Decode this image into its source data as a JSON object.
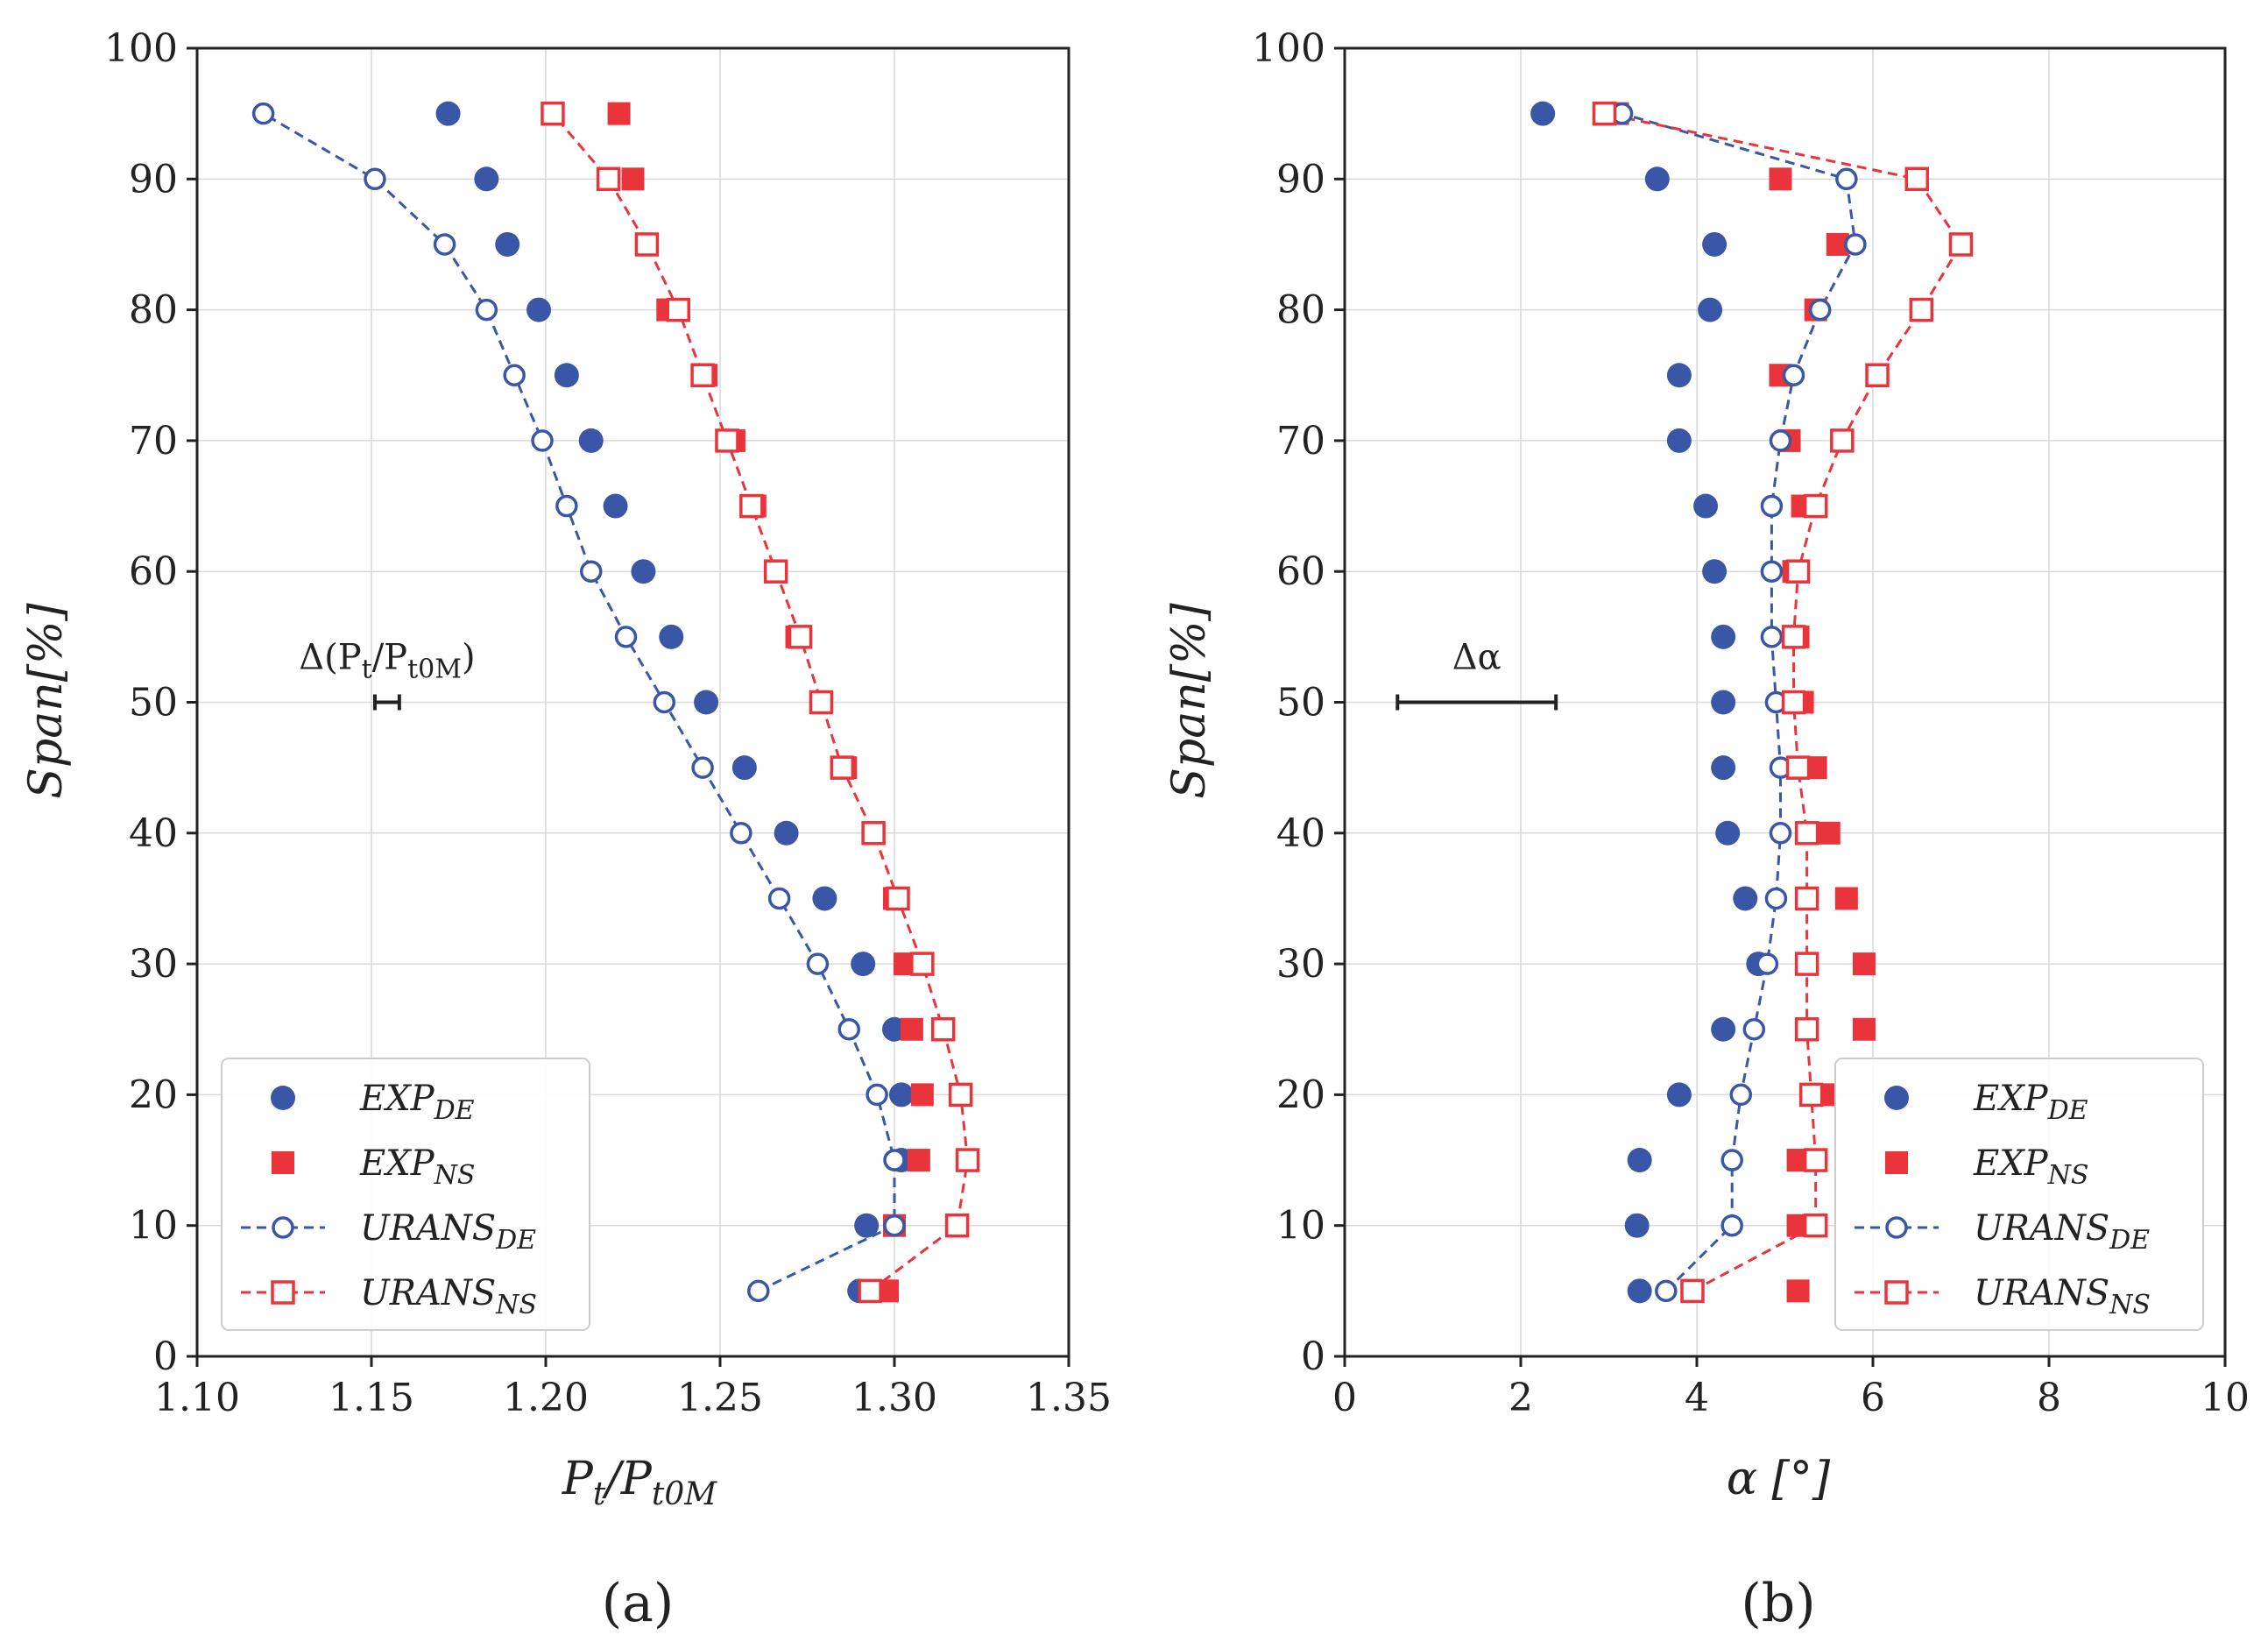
{
  "colors": {
    "blue": "#3a56a6",
    "red": "#e8343a",
    "grid": "#d9d9d9",
    "axis": "#222222"
  },
  "chart_data": [
    {
      "type": "scatter",
      "caption": "(a)",
      "xlabel_main": "P",
      "xlabel_sub1": "t",
      "xlabel_mid": "/P",
      "xlabel_sub2": "t0M",
      "ylabel": "Span[%]",
      "xlim": [
        1.1,
        1.35
      ],
      "ylim": [
        0,
        100
      ],
      "xticks": [
        "1.10",
        "1.15",
        "1.20",
        "1.25",
        "1.30",
        "1.35"
      ],
      "yticks": [
        "0",
        "10",
        "20",
        "30",
        "40",
        "50",
        "60",
        "70",
        "80",
        "90",
        "100"
      ],
      "annotation": {
        "label": "Δ(P",
        "sub1": "t",
        "mid": "/P",
        "sub2": "t0M",
        "end": ")",
        "x_center": 1.1545,
        "half_width": 0.0035,
        "y": 50
      },
      "legend": {
        "position": "lower-left",
        "entries": [
          {
            "name": "EXP",
            "sub": "DE",
            "marker": "filled-circle",
            "color": "blue"
          },
          {
            "name": "EXP",
            "sub": "NS",
            "marker": "filled-square",
            "color": "red"
          },
          {
            "name": "URANS",
            "sub": "DE",
            "marker": "open-circle-dashed",
            "color": "blue"
          },
          {
            "name": "URANS",
            "sub": "NS",
            "marker": "open-square-dashed",
            "color": "red"
          }
        ]
      },
      "series": [
        {
          "name": "EXP_DE",
          "style": "filled-circle",
          "color": "blue",
          "x": [
            1.29,
            1.292,
            1.302,
            1.302,
            1.3,
            1.291,
            1.28,
            1.269,
            1.257,
            1.246,
            1.236,
            1.228,
            1.22,
            1.213,
            1.206,
            1.198,
            1.189,
            1.183,
            1.172
          ],
          "y": [
            5,
            10,
            15,
            20,
            25,
            30,
            35,
            40,
            45,
            50,
            55,
            60,
            65,
            70,
            75,
            80,
            85,
            90,
            95
          ]
        },
        {
          "name": "EXP_NS",
          "style": "filled-square",
          "color": "red",
          "x": [
            1.298,
            1.3,
            1.307,
            1.308,
            1.305,
            1.303,
            1.3,
            1.294,
            1.286,
            1.279,
            1.272,
            1.266,
            1.26,
            1.254,
            1.246,
            1.235,
            1.229,
            1.225,
            1.221
          ],
          "y": [
            5,
            10,
            15,
            20,
            25,
            30,
            35,
            40,
            45,
            50,
            55,
            60,
            65,
            70,
            75,
            80,
            85,
            90,
            95
          ]
        },
        {
          "name": "URANS_DE",
          "style": "open-circle-dashed",
          "color": "blue",
          "x": [
            1.261,
            1.3,
            1.3,
            1.295,
            1.287,
            1.278,
            1.267,
            1.256,
            1.245,
            1.234,
            1.223,
            1.213,
            1.206,
            1.199,
            1.191,
            1.183,
            1.171,
            1.151,
            1.119
          ],
          "y": [
            5,
            10,
            15,
            20,
            25,
            30,
            35,
            40,
            45,
            50,
            55,
            60,
            65,
            70,
            75,
            80,
            85,
            90,
            95
          ]
        },
        {
          "name": "URANS_NS",
          "style": "open-square-dashed",
          "color": "red",
          "x": [
            1.293,
            1.318,
            1.321,
            1.319,
            1.314,
            1.308,
            1.301,
            1.294,
            1.285,
            1.279,
            1.273,
            1.266,
            1.259,
            1.252,
            1.245,
            1.238,
            1.229,
            1.218,
            1.202
          ],
          "y": [
            5,
            10,
            15,
            20,
            25,
            30,
            35,
            40,
            45,
            50,
            55,
            60,
            65,
            70,
            75,
            80,
            85,
            90,
            95
          ]
        }
      ]
    },
    {
      "type": "scatter",
      "caption": "(b)",
      "xlabel": "α [°]",
      "ylabel": "Span[%]",
      "xlim": [
        0,
        10
      ],
      "ylim": [
        0,
        100
      ],
      "xticks": [
        "0",
        "2",
        "4",
        "6",
        "8",
        "10"
      ],
      "yticks": [
        "0",
        "10",
        "20",
        "30",
        "40",
        "50",
        "60",
        "70",
        "80",
        "90",
        "100"
      ],
      "annotation": {
        "label": "Δα",
        "x_center": 1.5,
        "half_width": 0.9,
        "y": 50
      },
      "legend": {
        "position": "lower-right",
        "entries": [
          {
            "name": "EXP",
            "sub": "DE",
            "marker": "filled-circle",
            "color": "blue"
          },
          {
            "name": "EXP",
            "sub": "NS",
            "marker": "filled-square",
            "color": "red"
          },
          {
            "name": "URANS",
            "sub": "DE",
            "marker": "open-circle-dashed",
            "color": "blue"
          },
          {
            "name": "URANS",
            "sub": "NS",
            "marker": "open-square-dashed",
            "color": "red"
          }
        ]
      },
      "series": [
        {
          "name": "EXP_DE",
          "style": "filled-circle",
          "color": "blue",
          "x": [
            3.35,
            3.32,
            3.35,
            3.8,
            4.3,
            4.7,
            4.55,
            4.35,
            4.3,
            4.3,
            4.3,
            4.2,
            4.1,
            3.8,
            3.8,
            4.15,
            4.2,
            3.55,
            2.25
          ],
          "y": [
            5,
            10,
            15,
            20,
            25,
            30,
            35,
            40,
            45,
            50,
            55,
            60,
            65,
            70,
            75,
            80,
            85,
            90,
            95
          ]
        },
        {
          "name": "EXP_NS",
          "style": "filled-square",
          "color": "red",
          "x": [
            5.15,
            5.15,
            5.15,
            5.45,
            5.9,
            5.9,
            5.7,
            5.5,
            5.35,
            5.2,
            5.15,
            5.1,
            5.2,
            5.05,
            4.95,
            5.35,
            5.6,
            4.95,
            3.1
          ],
          "y": [
            5,
            10,
            15,
            20,
            25,
            30,
            35,
            40,
            45,
            50,
            55,
            60,
            65,
            70,
            75,
            80,
            85,
            90,
            95
          ]
        },
        {
          "name": "URANS_DE",
          "style": "open-circle-dashed",
          "color": "blue",
          "x": [
            3.65,
            4.4,
            4.4,
            4.5,
            4.65,
            4.8,
            4.9,
            4.95,
            4.95,
            4.9,
            4.85,
            4.85,
            4.85,
            4.95,
            5.1,
            5.4,
            5.8,
            5.7,
            3.15
          ],
          "y": [
            5,
            10,
            15,
            20,
            25,
            30,
            35,
            40,
            45,
            50,
            55,
            60,
            65,
            70,
            75,
            80,
            85,
            90,
            95
          ]
        },
        {
          "name": "URANS_NS",
          "style": "open-square-dashed",
          "color": "red",
          "x": [
            3.95,
            5.35,
            5.35,
            5.3,
            5.25,
            5.25,
            5.25,
            5.25,
            5.15,
            5.1,
            5.1,
            5.15,
            5.35,
            5.65,
            6.05,
            6.55,
            7.0,
            6.5,
            2.95
          ],
          "y": [
            5,
            10,
            15,
            20,
            25,
            30,
            35,
            40,
            45,
            50,
            55,
            60,
            65,
            70,
            75,
            80,
            85,
            90,
            95
          ]
        }
      ]
    }
  ]
}
